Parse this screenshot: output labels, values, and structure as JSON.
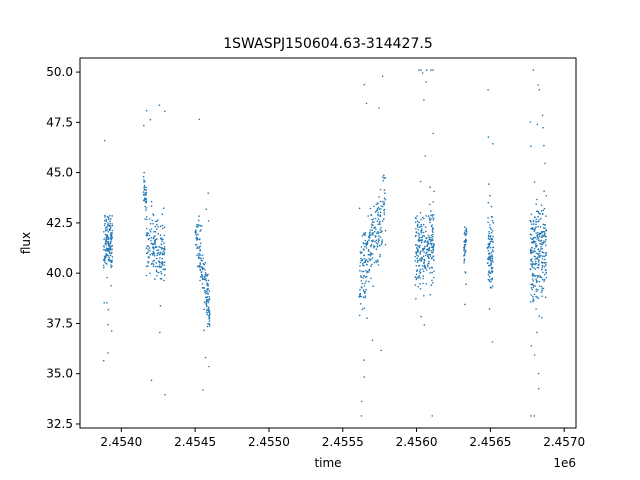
{
  "chart_data": {
    "type": "scatter",
    "title": "1SWASPJ150604.63-314427.5",
    "xlabel": "time",
    "ylabel": "flux",
    "x_offset_label": "1e6",
    "xlim": [
      2453720,
      2457080
    ],
    "ylim": [
      32.3,
      50.7
    ],
    "x_ticks": [
      2.454,
      2.4545,
      2.455,
      2.4555,
      2.456,
      2.4565,
      2.457
    ],
    "x_tick_labels": [
      "2.4540",
      "2.4545",
      "2.4550",
      "2.4555",
      "2.4560",
      "2.4565",
      "2.4570"
    ],
    "y_ticks": [
      32.5,
      35.0,
      37.5,
      40.0,
      42.5,
      45.0,
      47.5,
      50.0
    ],
    "y_tick_labels": [
      "32.5",
      "35.0",
      "37.5",
      "40.0",
      "42.5",
      "45.0",
      "47.5",
      "50.0"
    ],
    "grid": false,
    "legend": "none",
    "point_color": "#1f77b4",
    "segments": [
      {
        "t": [
          2453880,
          2453940
        ],
        "center": [
          41.5,
          41.5
        ],
        "spread": 1.2,
        "outliers": 0.6,
        "count": 160
      },
      {
        "t": [
          2454150,
          2454170
        ],
        "center": [
          44.3,
          43.7
        ],
        "spread": 0.8,
        "outliers": 0.3,
        "count": 40
      },
      {
        "t": [
          2454170,
          2454300
        ],
        "center": [
          41.5,
          41.0
        ],
        "spread": 1.4,
        "outliers": 0.8,
        "count": 180
      },
      {
        "t": [
          2454500,
          2454600
        ],
        "center": [
          42.2,
          38.0
        ],
        "spread": 1.2,
        "outliers": 1.0,
        "count": 170
      },
      {
        "t": [
          2455610,
          2455790
        ],
        "center": [
          39.5,
          43.5
        ],
        "spread": 1.6,
        "outliers": 1.2,
        "count": 250
      },
      {
        "t": [
          2455990,
          2456120
        ],
        "center": [
          41.2,
          41.5
        ],
        "spread": 1.8,
        "outliers": 1.4,
        "count": 260
      },
      {
        "t": [
          2456320,
          2456340
        ],
        "center": [
          41.5,
          41.5
        ],
        "spread": 0.9,
        "outliers": 0.3,
        "count": 40
      },
      {
        "t": [
          2456480,
          2456520
        ],
        "center": [
          41.5,
          41.0
        ],
        "spread": 2.0,
        "outliers": 0.6,
        "count": 110
      },
      {
        "t": [
          2456770,
          2456880
        ],
        "center": [
          41.0,
          41.0
        ],
        "spread": 2.3,
        "outliers": 1.5,
        "count": 280
      }
    ]
  }
}
